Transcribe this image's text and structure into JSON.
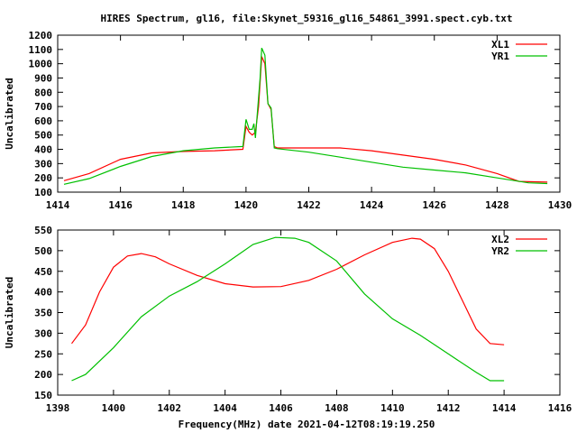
{
  "title": "HIRES Spectrum, gl16, file:Skynet_59316_gl16_54861_3991.spect.cyb.txt",
  "xlabel": "Frequency(MHz) date 2021-04-12T08:19:19.250",
  "chart_data": [
    {
      "type": "line",
      "ylabel": "Uncalibrated",
      "xlim": [
        1414,
        1430
      ],
      "ylim": [
        100,
        1200
      ],
      "xticks": [
        1414,
        1416,
        1418,
        1420,
        1422,
        1424,
        1426,
        1428,
        1430
      ],
      "yticks": [
        100,
        200,
        300,
        400,
        500,
        600,
        700,
        800,
        900,
        1000,
        1100,
        1200
      ],
      "legend": "top-right",
      "series": [
        {
          "name": "XL1",
          "color": "#ff0000",
          "x": [
            1414.2,
            1415,
            1416,
            1417,
            1418,
            1419,
            1419.9,
            1420,
            1420.1,
            1420.2,
            1420.3,
            1420.4,
            1420.5,
            1420.6,
            1420.7,
            1420.8,
            1420.9,
            1421,
            1422,
            1423,
            1424,
            1425,
            1426,
            1427,
            1428,
            1428.7,
            1429.6
          ],
          "y": [
            180,
            230,
            330,
            375,
            385,
            390,
            400,
            560,
            520,
            500,
            520,
            700,
            1050,
            1000,
            720,
            680,
            420,
            410,
            410,
            410,
            390,
            360,
            330,
            290,
            230,
            175,
            170
          ]
        },
        {
          "name": "YR1",
          "color": "#00c000",
          "x": [
            1414.2,
            1415,
            1416,
            1417,
            1418,
            1419,
            1419.9,
            1420,
            1420.1,
            1420.2,
            1420.25,
            1420.3,
            1420.45,
            1420.5,
            1420.6,
            1420.7,
            1420.8,
            1420.9,
            1421,
            1422,
            1423,
            1424,
            1425,
            1426,
            1427,
            1428,
            1429,
            1429.6
          ],
          "y": [
            155,
            195,
            280,
            350,
            390,
            410,
            420,
            610,
            540,
            540,
            580,
            480,
            900,
            1110,
            1060,
            720,
            690,
            410,
            405,
            380,
            345,
            310,
            275,
            255,
            235,
            200,
            165,
            160
          ]
        }
      ]
    },
    {
      "type": "line",
      "ylabel": "Uncalibrated",
      "xlim": [
        1398,
        1416
      ],
      "ylim": [
        150,
        550
      ],
      "xticks": [
        1398,
        1400,
        1402,
        1404,
        1406,
        1408,
        1410,
        1412,
        1414,
        1416
      ],
      "yticks": [
        150,
        200,
        250,
        300,
        350,
        400,
        450,
        500,
        550
      ],
      "legend": "top-right",
      "series": [
        {
          "name": "XL2",
          "color": "#ff0000",
          "x": [
            1398.5,
            1399,
            1399.5,
            1400,
            1400.5,
            1401,
            1401.5,
            1402,
            1403,
            1404,
            1405,
            1406,
            1407,
            1408,
            1409,
            1410,
            1410.7,
            1411,
            1411.5,
            1412,
            1412.5,
            1413,
            1413.5,
            1414
          ],
          "y": [
            275,
            320,
            400,
            460,
            487,
            493,
            485,
            468,
            440,
            420,
            412,
            413,
            428,
            455,
            490,
            520,
            530,
            528,
            505,
            450,
            380,
            310,
            275,
            272
          ]
        },
        {
          "name": "YR2",
          "color": "#00c000",
          "x": [
            1398.5,
            1399,
            1400,
            1401,
            1402,
            1403,
            1404,
            1405,
            1405.8,
            1406.5,
            1407,
            1408,
            1409,
            1410,
            1411,
            1412,
            1413,
            1413.5,
            1414
          ],
          "y": [
            185,
            200,
            265,
            340,
            390,
            425,
            468,
            515,
            532,
            530,
            520,
            475,
            395,
            335,
            295,
            250,
            205,
            185,
            185
          ]
        }
      ]
    }
  ]
}
